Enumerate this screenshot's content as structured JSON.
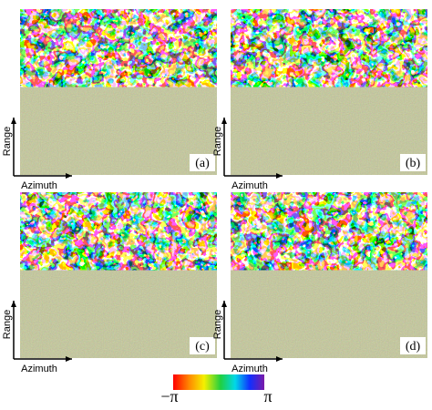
{
  "panels": [
    {
      "label": "(a)",
      "x_axis": "Azimuth",
      "y_axis": "Range"
    },
    {
      "label": "(b)",
      "x_axis": "Azimuth",
      "y_axis": "Range"
    },
    {
      "label": "(c)",
      "x_axis": "Azimuth",
      "y_axis": "Range"
    },
    {
      "label": "(d)",
      "x_axis": "Azimuth",
      "y_axis": "Range"
    }
  ],
  "colorbar": {
    "min_label": "−π",
    "max_label": "π"
  }
}
